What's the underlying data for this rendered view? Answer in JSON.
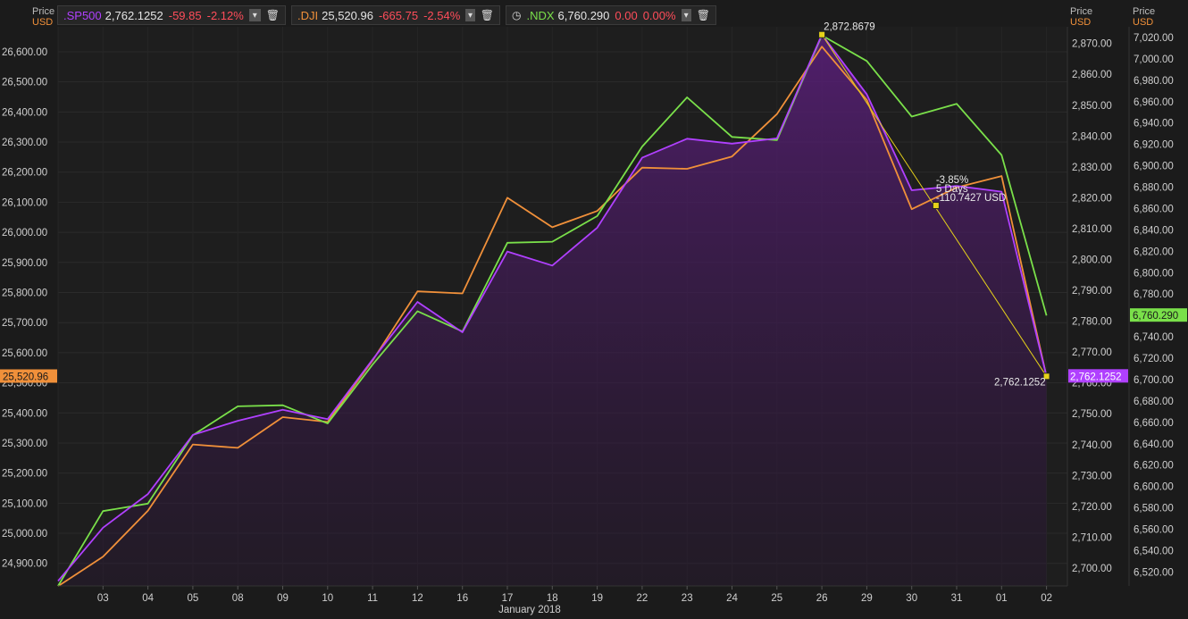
{
  "axis_headers": {
    "left": {
      "price": "Price",
      "unit": "USD"
    },
    "mid": {
      "price": "Price",
      "unit": "USD"
    },
    "right": {
      "price": "Price",
      "unit": "USD"
    }
  },
  "legends": [
    {
      "symbol": ".SP500",
      "value": "2,762.1252",
      "change": "-59.85",
      "pct": "-2.12%",
      "color": "#b040ff",
      "icon": "",
      "dropdown_icon": "chevron-down-icon",
      "delete_icon": "trash-icon"
    },
    {
      "symbol": ".DJI",
      "value": "25,520.96",
      "change": "-665.75",
      "pct": "-2.54%",
      "color": "#f0903a",
      "icon": "",
      "dropdown_icon": "chevron-down-icon",
      "delete_icon": "trash-icon"
    },
    {
      "symbol": ".NDX",
      "value": "6,760.290",
      "change": "0.00",
      "pct": "0.00%",
      "color": "#7ae04a",
      "icon": "clock-icon",
      "dropdown_icon": "chevron-down-icon",
      "delete_icon": "trash-icon"
    }
  ],
  "chart_data": {
    "type": "line",
    "x_labels": [
      "02",
      "03",
      "04",
      "05",
      "08",
      "09",
      "10",
      "11",
      "12",
      "16",
      "17",
      "18",
      "19",
      "22",
      "23",
      "24",
      "25",
      "26",
      "29",
      "30",
      "31",
      "01",
      "02"
    ],
    "x_label_month": "January 2018",
    "axes": {
      "dji": {
        "ticks": [
          "26,600.00",
          "26,500.00",
          "26,400.00",
          "26,300.00",
          "26,200.00",
          "26,100.00",
          "26,000.00",
          "25,900.00",
          "25,800.00",
          "25,700.00",
          "25,600.00",
          "25,500.00",
          "25,400.00",
          "25,300.00",
          "25,200.00",
          "25,100.00",
          "25,000.00",
          "24,900.00"
        ],
        "range": [
          24825,
          26683
        ]
      },
      "sp500": {
        "ticks": [
          "2,870.00",
          "2,860.00",
          "2,850.00",
          "2,840.00",
          "2,830.00",
          "2,820.00",
          "2,810.00",
          "2,800.00",
          "2,790.00",
          "2,780.00",
          "2,770.00",
          "2,760.00",
          "2,750.00",
          "2,740.00",
          "2,730.00",
          "2,720.00",
          "2,710.00",
          "2,700.00"
        ],
        "range": [
          2694.2,
          2875.4
        ]
      },
      "ndx": {
        "ticks": [
          "7,020.00",
          "7,000.00",
          "6,980.00",
          "6,960.00",
          "6,940.00",
          "6,920.00",
          "6,900.00",
          "6,880.00",
          "6,860.00",
          "6,840.00",
          "6,820.00",
          "6,800.00",
          "6,780.00",
          "6,760.00",
          "6,740.00",
          "6,720.00",
          "6,700.00",
          "6,680.00",
          "6,660.00",
          "6,640.00",
          "6,620.00",
          "6,600.00",
          "6,580.00",
          "6,560.00",
          "6,540.00",
          "6,520.00"
        ],
        "range": [
          6507,
          7030
        ]
      }
    },
    "series": [
      {
        "name": ".DJI",
        "axis": "dji",
        "color": "#f0903a",
        "values": [
          24824,
          24922,
          25075,
          25295,
          25284,
          25386,
          25370,
          25574,
          25804,
          25797,
          26115,
          26017,
          26071,
          26215,
          26211,
          26252,
          26393,
          26617,
          26440,
          26077,
          26149,
          26187,
          25521
        ]
      },
      {
        "name": ".NDX",
        "axis": "ndx",
        "color": "#7ae04a",
        "values": [
          6507,
          6577,
          6584,
          6648,
          6675,
          6676,
          6659,
          6714,
          6764,
          6745,
          6828,
          6829,
          6853,
          6918,
          6964,
          6927,
          6924,
          7022,
          6998,
          6946,
          6958,
          6910,
          6760
        ]
      },
      {
        "name": ".SP500",
        "axis": "sp500",
        "color": "#b040ff",
        "area": true,
        "values": [
          2695.81,
          2713.06,
          2723.99,
          2743.15,
          2747.71,
          2751.29,
          2748.23,
          2767.56,
          2786.24,
          2776.42,
          2802.56,
          2798.03,
          2810.3,
          2832.97,
          2839.13,
          2837.54,
          2839.25,
          2872.87,
          2853.53,
          2822.43,
          2823.81,
          2821.98,
          2762.13
        ]
      }
    ],
    "price_tags": {
      "dji": "25,520.96",
      "sp500": "2,762.1252",
      "ndx": "6,760.290"
    },
    "annotations": {
      "high_label": "2,872.8679",
      "low_label": "2,762.1252",
      "measure_pct": "-3.85%",
      "measure_days": "5 Days",
      "measure_usd": "-110.7427 USD"
    }
  }
}
